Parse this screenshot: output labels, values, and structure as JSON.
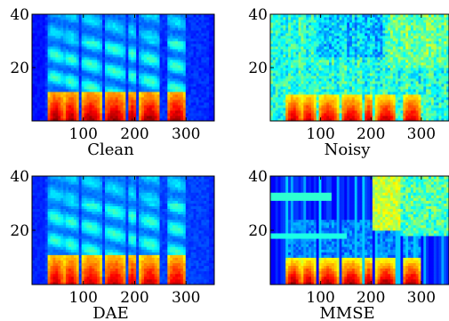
{
  "chart_data": [
    {
      "type": "heatmap",
      "xlabel": "Clean",
      "x_ticks": [
        100,
        200,
        300
      ],
      "y_ticks": [
        20,
        40
      ],
      "xlim": [
        0,
        355
      ],
      "ylim": [
        0,
        40
      ],
      "colormap": "jet",
      "variant": "clean",
      "speech_segments": [
        [
          30,
          62
        ],
        [
          62,
          90
        ],
        [
          95,
          135
        ],
        [
          140,
          182
        ],
        [
          186,
          205
        ],
        [
          210,
          250
        ],
        [
          262,
          300
        ]
      ]
    },
    {
      "type": "heatmap",
      "xlabel": "Noisy",
      "x_ticks": [
        100,
        200,
        300
      ],
      "y_ticks": [
        20,
        40
      ],
      "xlim": [
        0,
        355
      ],
      "ylim": [
        0,
        40
      ],
      "colormap": "jet",
      "variant": "noisy",
      "speech_segments": [
        [
          30,
          62
        ],
        [
          62,
          90
        ],
        [
          95,
          135
        ],
        [
          140,
          182
        ],
        [
          186,
          205
        ],
        [
          210,
          250
        ],
        [
          262,
          300
        ]
      ]
    },
    {
      "type": "heatmap",
      "xlabel": "DAE",
      "x_ticks": [
        100,
        200,
        300
      ],
      "y_ticks": [
        20,
        40
      ],
      "xlim": [
        0,
        355
      ],
      "ylim": [
        0,
        40
      ],
      "colormap": "jet",
      "variant": "dae",
      "speech_segments": [
        [
          30,
          62
        ],
        [
          62,
          90
        ],
        [
          95,
          135
        ],
        [
          140,
          182
        ],
        [
          186,
          205
        ],
        [
          210,
          250
        ],
        [
          262,
          300
        ]
      ]
    },
    {
      "type": "heatmap",
      "xlabel": "MMSE",
      "x_ticks": [
        100,
        200,
        300
      ],
      "y_ticks": [
        20,
        40
      ],
      "xlim": [
        0,
        355
      ],
      "ylim": [
        0,
        40
      ],
      "colormap": "jet",
      "variant": "mmse",
      "speech_segments": [
        [
          30,
          62
        ],
        [
          62,
          90
        ],
        [
          95,
          135
        ],
        [
          140,
          182
        ],
        [
          186,
          205
        ],
        [
          210,
          250
        ],
        [
          262,
          300
        ]
      ]
    }
  ]
}
